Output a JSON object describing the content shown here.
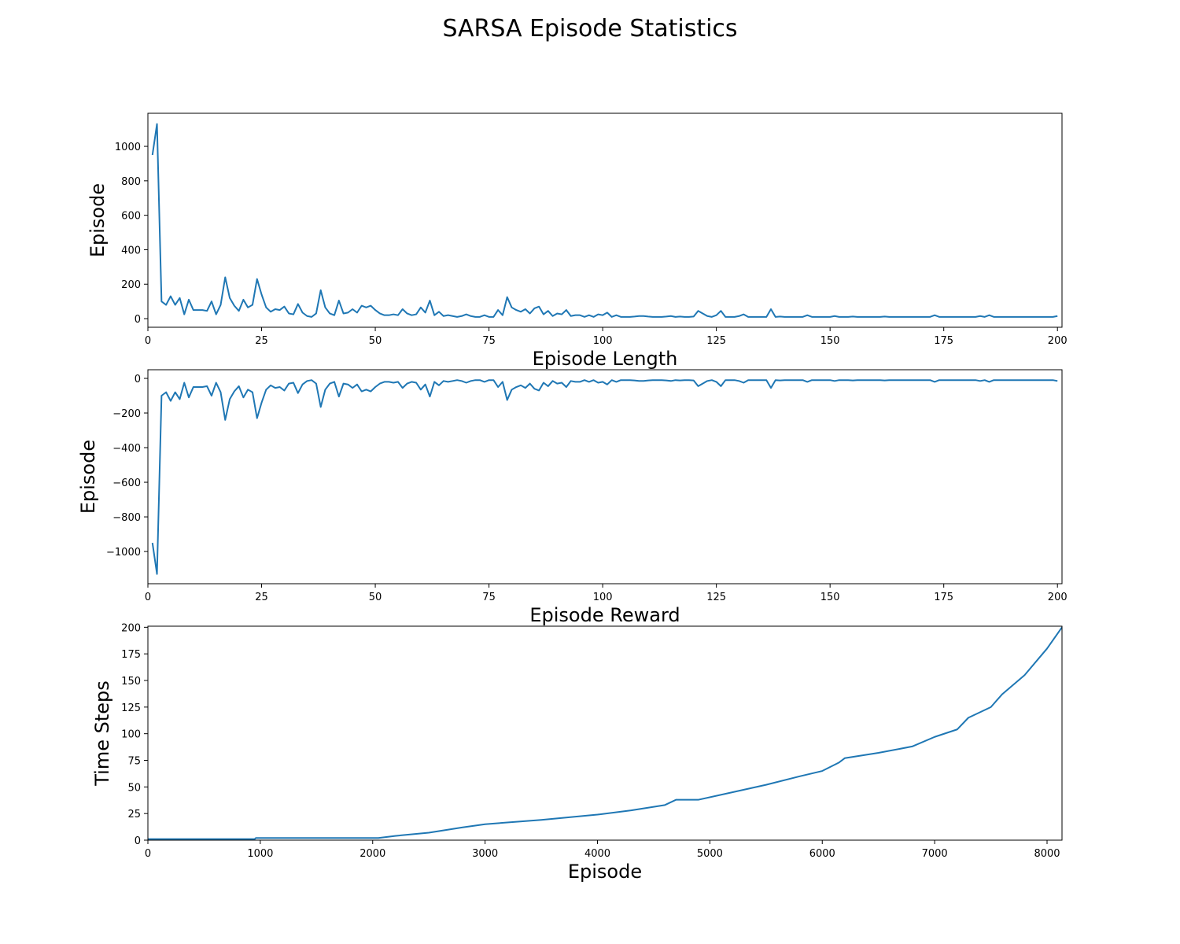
{
  "title": "SARSA Episode Statistics",
  "chart_data": [
    {
      "type": "line",
      "xlabel": "Episode Length",
      "ylabel": "Episode",
      "color": "#1f77b4",
      "x": [
        1,
        2,
        3,
        4,
        5,
        6,
        7,
        8,
        9,
        10,
        11,
        12,
        13,
        14,
        15,
        16,
        17,
        18,
        19,
        20,
        21,
        22,
        23,
        24,
        25,
        26,
        27,
        28,
        29,
        30,
        31,
        32,
        33,
        34,
        35,
        36,
        37,
        38,
        39,
        40,
        41,
        42,
        43,
        44,
        45,
        46,
        47,
        48,
        49,
        50,
        51,
        52,
        53,
        54,
        55,
        56,
        57,
        58,
        59,
        60,
        61,
        62,
        63,
        64,
        65,
        66,
        67,
        68,
        69,
        70,
        71,
        72,
        73,
        74,
        75,
        76,
        77,
        78,
        79,
        80,
        81,
        82,
        83,
        84,
        85,
        86,
        87,
        88,
        89,
        90,
        91,
        92,
        93,
        94,
        95,
        96,
        97,
        98,
        99,
        100,
        101,
        102,
        103,
        104,
        105,
        106,
        107,
        108,
        109,
        110,
        111,
        112,
        113,
        114,
        115,
        116,
        117,
        118,
        119,
        120,
        121,
        122,
        123,
        124,
        125,
        126,
        127,
        128,
        129,
        130,
        131,
        132,
        133,
        134,
        135,
        136,
        137,
        138,
        139,
        140,
        141,
        142,
        143,
        144,
        145,
        146,
        147,
        148,
        149,
        150,
        151,
        152,
        153,
        154,
        155,
        156,
        157,
        158,
        159,
        160,
        161,
        162,
        163,
        164,
        165,
        166,
        167,
        168,
        169,
        170,
        171,
        172,
        173,
        174,
        175,
        176,
        177,
        178,
        179,
        180,
        181,
        182,
        183,
        184,
        185,
        186,
        187,
        188,
        189,
        190,
        191,
        192,
        193,
        194,
        195,
        196,
        197,
        198,
        199,
        200
      ],
      "values": [
        950,
        1130,
        100,
        80,
        130,
        80,
        120,
        25,
        110,
        50,
        50,
        50,
        45,
        100,
        25,
        80,
        240,
        120,
        75,
        45,
        110,
        65,
        80,
        230,
        140,
        65,
        40,
        55,
        50,
        70,
        30,
        25,
        85,
        35,
        15,
        10,
        30,
        165,
        65,
        30,
        20,
        105,
        30,
        35,
        55,
        35,
        75,
        65,
        75,
        50,
        30,
        20,
        20,
        25,
        20,
        55,
        30,
        20,
        25,
        65,
        35,
        105,
        20,
        40,
        15,
        20,
        15,
        10,
        15,
        25,
        15,
        10,
        10,
        20,
        10,
        10,
        50,
        20,
        125,
        65,
        50,
        40,
        55,
        30,
        60,
        70,
        25,
        45,
        15,
        30,
        25,
        50,
        15,
        20,
        20,
        10,
        20,
        10,
        25,
        20,
        35,
        10,
        20,
        10,
        10,
        10,
        12,
        15,
        15,
        12,
        10,
        10,
        10,
        12,
        15,
        10,
        12,
        10,
        10,
        12,
        45,
        30,
        15,
        10,
        20,
        45,
        10,
        10,
        10,
        15,
        25,
        10,
        10,
        10,
        10,
        10,
        55,
        10,
        12,
        10,
        10,
        10,
        10,
        10,
        20,
        10,
        10,
        10,
        10,
        10,
        15,
        10,
        10,
        10,
        12,
        10,
        10,
        10,
        10,
        10,
        10,
        12,
        10,
        10,
        10,
        10,
        10,
        10,
        10,
        10,
        10,
        10,
        20,
        10,
        10,
        10,
        10,
        10,
        10,
        10,
        10,
        10,
        15,
        10,
        20,
        10,
        10,
        10,
        10,
        10,
        10,
        10,
        10,
        10,
        10,
        10,
        10,
        10,
        10,
        15
      ],
      "xlim": [
        0,
        201
      ],
      "ylim": [
        -50,
        1192
      ],
      "xticks": [
        0,
        25,
        50,
        75,
        100,
        125,
        150,
        175,
        200
      ],
      "yticks": [
        0,
        200,
        400,
        600,
        800,
        1000
      ]
    },
    {
      "type": "line",
      "xlabel": "Episode Reward",
      "ylabel": "Episode",
      "color": "#1f77b4",
      "x": [
        1,
        2,
        3,
        4,
        5,
        6,
        7,
        8,
        9,
        10,
        11,
        12,
        13,
        14,
        15,
        16,
        17,
        18,
        19,
        20,
        21,
        22,
        23,
        24,
        25,
        26,
        27,
        28,
        29,
        30,
        31,
        32,
        33,
        34,
        35,
        36,
        37,
        38,
        39,
        40,
        41,
        42,
        43,
        44,
        45,
        46,
        47,
        48,
        49,
        50,
        51,
        52,
        53,
        54,
        55,
        56,
        57,
        58,
        59,
        60,
        61,
        62,
        63,
        64,
        65,
        66,
        67,
        68,
        69,
        70,
        71,
        72,
        73,
        74,
        75,
        76,
        77,
        78,
        79,
        80,
        81,
        82,
        83,
        84,
        85,
        86,
        87,
        88,
        89,
        90,
        91,
        92,
        93,
        94,
        95,
        96,
        97,
        98,
        99,
        100,
        101,
        102,
        103,
        104,
        105,
        106,
        107,
        108,
        109,
        110,
        111,
        112,
        113,
        114,
        115,
        116,
        117,
        118,
        119,
        120,
        121,
        122,
        123,
        124,
        125,
        126,
        127,
        128,
        129,
        130,
        131,
        132,
        133,
        134,
        135,
        136,
        137,
        138,
        139,
        140,
        141,
        142,
        143,
        144,
        145,
        146,
        147,
        148,
        149,
        150,
        151,
        152,
        153,
        154,
        155,
        156,
        157,
        158,
        159,
        160,
        161,
        162,
        163,
        164,
        165,
        166,
        167,
        168,
        169,
        170,
        171,
        172,
        173,
        174,
        175,
        176,
        177,
        178,
        179,
        180,
        181,
        182,
        183,
        184,
        185,
        186,
        187,
        188,
        189,
        190,
        191,
        192,
        193,
        194,
        195,
        196,
        197,
        198,
        199,
        200
      ],
      "values": [
        -950,
        -1130,
        -100,
        -80,
        -130,
        -80,
        -120,
        -25,
        -110,
        -50,
        -50,
        -50,
        -45,
        -100,
        -25,
        -80,
        -240,
        -120,
        -75,
        -45,
        -110,
        -65,
        -80,
        -230,
        -140,
        -65,
        -40,
        -55,
        -50,
        -70,
        -30,
        -25,
        -85,
        -35,
        -15,
        -10,
        -30,
        -165,
        -65,
        -30,
        -20,
        -105,
        -30,
        -35,
        -55,
        -35,
        -75,
        -65,
        -75,
        -50,
        -30,
        -20,
        -20,
        -25,
        -20,
        -55,
        -30,
        -20,
        -25,
        -65,
        -35,
        -105,
        -20,
        -40,
        -15,
        -20,
        -15,
        -10,
        -15,
        -25,
        -15,
        -10,
        -10,
        -20,
        -10,
        -10,
        -50,
        -20,
        -125,
        -65,
        -50,
        -40,
        -55,
        -30,
        -60,
        -70,
        -25,
        -45,
        -15,
        -30,
        -25,
        -50,
        -15,
        -20,
        -20,
        -10,
        -20,
        -10,
        -25,
        -20,
        -35,
        -10,
        -20,
        -10,
        -10,
        -10,
        -12,
        -15,
        -15,
        -12,
        -10,
        -10,
        -10,
        -12,
        -15,
        -10,
        -12,
        -10,
        -10,
        -12,
        -45,
        -30,
        -15,
        -10,
        -20,
        -45,
        -10,
        -10,
        -10,
        -15,
        -25,
        -10,
        -10,
        -10,
        -10,
        -10,
        -55,
        -10,
        -12,
        -10,
        -10,
        -10,
        -10,
        -10,
        -20,
        -10,
        -10,
        -10,
        -10,
        -10,
        -15,
        -10,
        -10,
        -10,
        -12,
        -10,
        -10,
        -10,
        -10,
        -10,
        -10,
        -12,
        -10,
        -10,
        -10,
        -10,
        -10,
        -10,
        -10,
        -10,
        -10,
        -10,
        -20,
        -10,
        -10,
        -10,
        -10,
        -10,
        -10,
        -10,
        -10,
        -10,
        -15,
        -10,
        -20,
        -10,
        -10,
        -10,
        -10,
        -10,
        -10,
        -10,
        -10,
        -10,
        -10,
        -10,
        -10,
        -10,
        -10,
        -15
      ],
      "xlim": [
        0,
        201
      ],
      "ylim": [
        -1186,
        50
      ],
      "xticks": [
        0,
        25,
        50,
        75,
        100,
        125,
        150,
        175,
        200
      ],
      "yticks": [
        {
          "value": -1000,
          "label": "−1000"
        },
        {
          "value": -800,
          "label": "−800"
        },
        {
          "value": -600,
          "label": "−600"
        },
        {
          "value": -400,
          "label": "−400"
        },
        {
          "value": -200,
          "label": "−200"
        },
        0
      ]
    },
    {
      "type": "line",
      "xlabel": "Episode",
      "ylabel": "Time Steps",
      "color": "#1f77b4",
      "x": [
        0,
        950,
        960,
        2050,
        2200,
        2500,
        2800,
        3000,
        3500,
        4000,
        4300,
        4600,
        4700,
        4900,
        5200,
        5500,
        5800,
        6000,
        6150,
        6200,
        6500,
        6800,
        7000,
        7200,
        7300,
        7500,
        7600,
        7800,
        8000,
        8133
      ],
      "values": [
        1,
        1,
        2,
        2,
        4,
        7,
        12,
        15,
        19,
        24,
        28,
        33,
        38,
        38,
        45,
        52,
        60,
        65,
        73,
        77,
        82,
        88,
        97,
        104,
        115,
        125,
        137,
        155,
        180,
        200
      ],
      "xlim": [
        0,
        8133
      ],
      "ylim": [
        0,
        201
      ],
      "xticks": [
        0,
        1000,
        2000,
        3000,
        4000,
        5000,
        6000,
        7000,
        8000
      ],
      "yticks": [
        0,
        25,
        50,
        75,
        100,
        125,
        150,
        175,
        200
      ]
    }
  ]
}
